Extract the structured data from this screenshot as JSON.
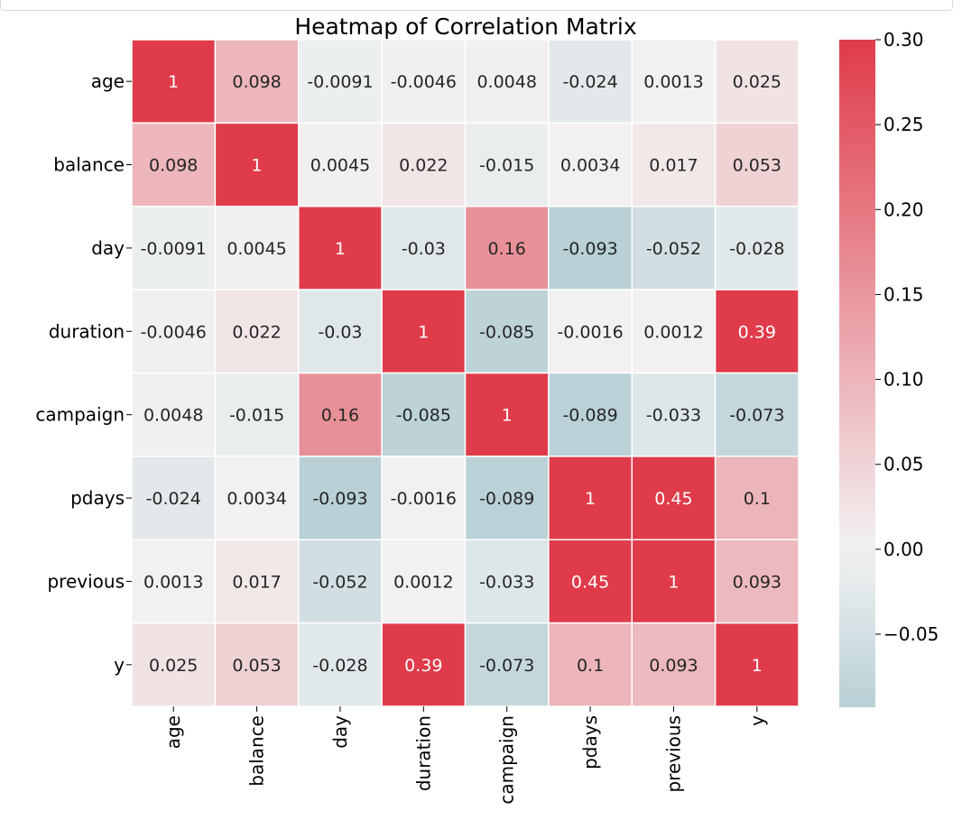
{
  "chart_data": {
    "type": "heatmap",
    "title": "Heatmap of Correlation Matrix",
    "xlabel": "",
    "ylabel": "",
    "labels": [
      "age",
      "balance",
      "day",
      "duration",
      "campaign",
      "pdays",
      "previous",
      "y"
    ],
    "values": [
      [
        1,
        0.098,
        -0.0091,
        -0.0046,
        0.0048,
        -0.024,
        0.0013,
        0.025
      ],
      [
        0.098,
        1,
        0.0045,
        0.022,
        -0.015,
        0.0034,
        0.017,
        0.053
      ],
      [
        -0.0091,
        0.0045,
        1,
        -0.03,
        0.16,
        -0.093,
        -0.052,
        -0.028
      ],
      [
        -0.0046,
        0.022,
        -0.03,
        1,
        -0.085,
        -0.0016,
        0.0012,
        0.39
      ],
      [
        0.0048,
        -0.015,
        0.16,
        -0.085,
        1,
        -0.089,
        -0.033,
        -0.073
      ],
      [
        -0.024,
        0.0034,
        -0.093,
        -0.0016,
        -0.089,
        1,
        0.45,
        0.1
      ],
      [
        0.0013,
        0.017,
        -0.052,
        0.0012,
        -0.033,
        0.45,
        1,
        0.093
      ],
      [
        0.025,
        0.053,
        -0.028,
        0.39,
        -0.073,
        0.1,
        0.093,
        1
      ]
    ],
    "value_labels": [
      [
        "1",
        "0.098",
        "-0.0091",
        "-0.0046",
        "0.0048",
        "-0.024",
        "0.0013",
        "0.025"
      ],
      [
        "0.098",
        "1",
        "0.0045",
        "0.022",
        "-0.015",
        "0.0034",
        "0.017",
        "0.053"
      ],
      [
        "-0.0091",
        "0.0045",
        "1",
        "-0.03",
        "0.16",
        "-0.093",
        "-0.052",
        "-0.028"
      ],
      [
        "-0.0046",
        "0.022",
        "-0.03",
        "1",
        "-0.085",
        "-0.0016",
        "0.0012",
        "0.39"
      ],
      [
        "0.0048",
        "-0.015",
        "0.16",
        "-0.085",
        "1",
        "-0.089",
        "-0.033",
        "-0.073"
      ],
      [
        "-0.024",
        "0.0034",
        "-0.093",
        "-0.0016",
        "-0.089",
        "1",
        "0.45",
        "0.1"
      ],
      [
        "0.0013",
        "0.017",
        "-0.052",
        "0.0012",
        "-0.033",
        "0.45",
        "1",
        "0.093"
      ],
      [
        "0.025",
        "0.053",
        "-0.028",
        "0.39",
        "-0.073",
        "0.1",
        "0.093",
        "1"
      ]
    ],
    "colorbar": {
      "vmin": -0.093,
      "vmax": 0.3,
      "ticks": [
        0.3,
        0.25,
        0.2,
        0.15,
        0.1,
        0.05,
        0.0,
        -0.05
      ],
      "tick_labels": [
        "0.30",
        "0.25",
        "0.20",
        "0.15",
        "0.10",
        "0.05",
        "0.00",
        "−0.05"
      ]
    },
    "colors": {
      "low": "#b8d0d6",
      "mid": "#f2f2f2",
      "high": "#e03b4a",
      "text_dark": "#262626",
      "text_light": "#ffffff"
    },
    "grid": true,
    "legend": "right"
  }
}
